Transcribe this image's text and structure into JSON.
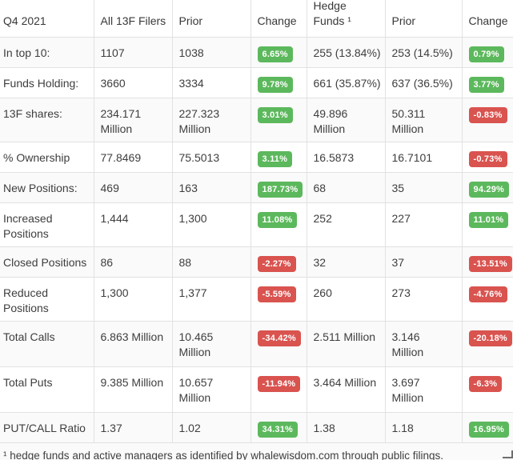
{
  "table": {
    "period": "Q4 2021",
    "headers": [
      "Q4 2021",
      "All 13F Filers",
      "Prior",
      "Change",
      [
        "Hedge",
        "Funds ¹"
      ],
      "Prior",
      "Change"
    ],
    "change_column_indexes": [
      3,
      6
    ],
    "rows": [
      {
        "cells": [
          "In top 10:",
          "1107",
          "1038",
          "6.65%",
          "255 (13.84%)",
          "253 (14.5%)",
          "0.79%"
        ]
      },
      {
        "cells": [
          "Funds Holding:",
          "3660",
          "3334",
          "9.78%",
          "661 (35.87%)",
          "637 (36.5%)",
          "3.77%"
        ]
      },
      {
        "cells": [
          "13F shares:",
          [
            "234.171",
            "Million"
          ],
          [
            "227.323",
            "Million"
          ],
          "3.01%",
          [
            "49.896",
            "Million"
          ],
          [
            "50.311",
            "Million"
          ],
          "-0.83%"
        ]
      },
      {
        "cells": [
          "% Ownership",
          "77.8469",
          "75.5013",
          "3.11%",
          "16.5873",
          "16.7101",
          "-0.73%"
        ]
      },
      {
        "cells": [
          "New Positions:",
          "469",
          "163",
          "187.73%",
          "68",
          "35",
          "94.29%"
        ]
      },
      {
        "cells": [
          [
            "Increased",
            "Positions"
          ],
          "1,444",
          "1,300",
          "11.08%",
          "252",
          "227",
          "11.01%"
        ]
      },
      {
        "cells": [
          "Closed Positions",
          "86",
          "88",
          "-2.27%",
          "32",
          "37",
          "-13.51%"
        ]
      },
      {
        "cells": [
          [
            "Reduced",
            "Positions"
          ],
          "1,300",
          "1,377",
          "-5.59%",
          "260",
          "273",
          "-4.76%"
        ]
      },
      {
        "cells": [
          "Total Calls",
          "6.863 Million",
          [
            "10.465",
            "Million"
          ],
          "-34.42%",
          "2.511 Million",
          [
            "3.146",
            "Million"
          ],
          "-20.18%"
        ]
      },
      {
        "cells": [
          "Total Puts",
          "9.385 Million",
          [
            "10.657",
            "Million"
          ],
          "-11.94%",
          "3.464 Million",
          [
            "3.697",
            "Million"
          ],
          "-6.3%"
        ]
      },
      {
        "cells": [
          "PUT/CALL Ratio",
          "1.37",
          "1.02",
          "34.31%",
          "1.38",
          "1.18",
          "16.95%"
        ]
      }
    ]
  },
  "footnote": "¹ hedge funds and active managers as identified by whalewisdom.com through public filings.",
  "colors": {
    "positive": "#5cb85c",
    "negative": "#d9534f"
  }
}
